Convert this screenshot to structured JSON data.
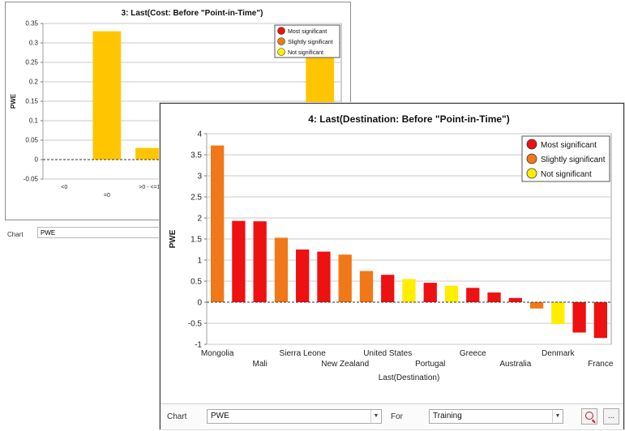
{
  "back_chart": {
    "chart_data": {
      "type": "bar",
      "title": "3: Last(Cost: Before \"Point-in-Time\")",
      "ylabel": "PWE",
      "ylim": [
        -0.05,
        0.35
      ],
      "yticks": [
        -0.05,
        0,
        0.05,
        0.1,
        0.15,
        0.2,
        0.25,
        0.3,
        0.35
      ],
      "ytick_labels": [
        "-0.05",
        "0",
        "0.05",
        "0.1",
        "0.15",
        "0.2",
        "0.25",
        "0.3",
        "0.35"
      ],
      "categories": [
        "<0",
        "=0",
        ">0 - <=1",
        ">1",
        "",
        "",
        ""
      ],
      "category_labels_visible": [
        "<0",
        "=0",
        ">0 - <=1",
        ">"
      ],
      "values": [
        0,
        0.33,
        0.03,
        null,
        null,
        null,
        0.265
      ],
      "significance": [
        null,
        "Not significant",
        "Not significant",
        null,
        null,
        null,
        "Not significant"
      ],
      "legend_position": "top-right",
      "grid": true
    },
    "footer": {
      "chart_label": "Chart",
      "chart_select": "PWE"
    }
  },
  "front_chart": {
    "chart_data": {
      "type": "bar",
      "title": "4: Last(Destination: Before \"Point-in-Time\")",
      "xlabel": "Last(Destination)",
      "ylabel": "PWE",
      "ylim": [
        -1,
        4
      ],
      "yticks": [
        -1,
        -0.5,
        0,
        0.5,
        1,
        1.5,
        2,
        2.5,
        3,
        3.5,
        4
      ],
      "ytick_labels": [
        "-1",
        "-0.5",
        "0",
        "0.5",
        "1",
        "1.5",
        "2",
        "2.5",
        "3",
        "3.5",
        "4"
      ],
      "categories": [
        "Mongolia",
        "",
        "Mali",
        "",
        "Sierra Leone",
        "",
        "New Zealand",
        "",
        "United States",
        "",
        "Portugal",
        "",
        "Greece",
        "",
        "Australia",
        "",
        "Denmark",
        "",
        "France"
      ],
      "values": [
        3.72,
        1.93,
        1.92,
        1.53,
        1.25,
        1.2,
        1.13,
        0.74,
        0.65,
        0.55,
        0.46,
        0.39,
        0.34,
        0.23,
        0.1,
        -0.15,
        -0.52,
        -0.72,
        -0.85
      ],
      "significance": [
        "Slightly significant",
        "Most significant",
        "Most significant",
        "Slightly significant",
        "Most significant",
        "Most significant",
        "Slightly significant",
        "Slightly significant",
        "Most significant",
        "Not significant",
        "Most significant",
        "Not significant",
        "Most significant",
        "Most significant",
        "Most significant",
        "Slightly significant",
        "Not significant",
        "Most significant",
        "Most significant"
      ],
      "legend_position": "top-right",
      "grid": true
    },
    "footer": {
      "chart_label": "Chart",
      "chart_select": "PWE",
      "for_label": "For",
      "for_select": "Training",
      "more_button": "..."
    }
  },
  "legend": [
    {
      "label": "Most significant",
      "color": "#ee1111"
    },
    {
      "label": "Slightly significant",
      "color": "#f07818"
    },
    {
      "label": "Not significant",
      "color": "#ffee00"
    }
  ],
  "colors": {
    "Most significant": "#ee1111",
    "Slightly significant": "#f07818",
    "Not significant": "#ffee00",
    "back_bar": "#ffc500"
  },
  "icons": {
    "dropdown": "chevron-down-icon",
    "zoom_reset": "zoom-reset-icon"
  }
}
